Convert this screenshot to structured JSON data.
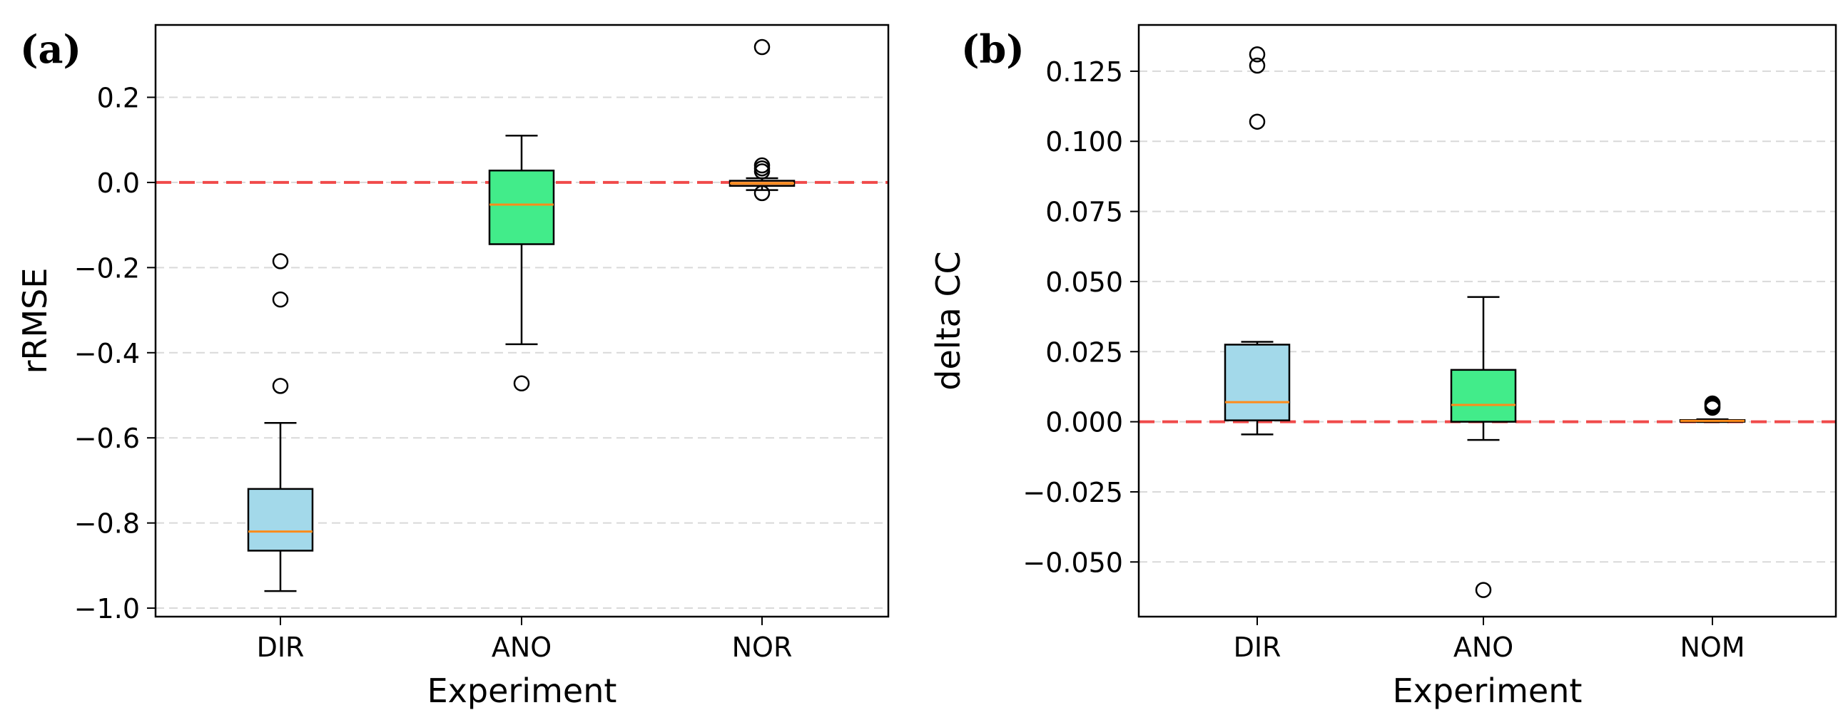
{
  "chart_data": [
    {
      "panel_label": "(a)",
      "type": "box",
      "xlabel": "Experiment",
      "ylabel": "rRMSE",
      "ylim": [
        -1.02,
        0.37
      ],
      "yticks": [
        0.2,
        0.0,
        -0.2,
        -0.4,
        -0.6,
        -0.8,
        -1.0
      ],
      "ytick_labels": [
        "0.2",
        "0.0",
        "−0.2",
        "−0.4",
        "−0.6",
        "−0.8",
        "−1.0"
      ],
      "grid": "horizontal-dashed",
      "reference_line": 0.0,
      "categories": [
        "DIR",
        "ANO",
        "NOR"
      ],
      "boxes": [
        {
          "label": "DIR",
          "color": "#a3d9ea",
          "q1": -0.865,
          "median": -0.82,
          "q3": -0.72,
          "whisker_low": -0.96,
          "whisker_high": -0.565,
          "outliers": [
            -0.185,
            -0.275,
            -0.478
          ]
        },
        {
          "label": "ANO",
          "color": "#42ec8a",
          "q1": -0.145,
          "median": -0.052,
          "q3": 0.028,
          "whisker_low": -0.38,
          "whisker_high": 0.11,
          "outliers": [
            -0.472
          ]
        },
        {
          "label": "NOR",
          "color": "#f4a06a",
          "q1": -0.008,
          "median": -0.002,
          "q3": 0.004,
          "whisker_low": -0.018,
          "whisker_high": 0.01,
          "outliers": [
            0.318,
            0.04,
            0.033,
            0.026,
            -0.025
          ]
        }
      ]
    },
    {
      "panel_label": "(b)",
      "type": "box",
      "xlabel": "Experiment",
      "ylabel": "delta CC",
      "ylim": [
        -0.0695,
        0.1415
      ],
      "yticks": [
        0.125,
        0.1,
        0.075,
        0.05,
        0.025,
        0.0,
        -0.025,
        -0.05
      ],
      "ytick_labels": [
        "0.125",
        "0.100",
        "0.075",
        "0.050",
        "0.025",
        "0.000",
        "−0.025",
        "−0.050"
      ],
      "grid": "horizontal-dashed",
      "reference_line": 0.0,
      "categories": [
        "DIR",
        "ANO",
        "NOM"
      ],
      "boxes": [
        {
          "label": "DIR",
          "color": "#a3d9ea",
          "q1": 0.0005,
          "median": 0.007,
          "q3": 0.0275,
          "whisker_low": -0.0045,
          "whisker_high": 0.0285,
          "outliers": [
            0.131,
            0.127,
            0.107
          ]
        },
        {
          "label": "ANO",
          "color": "#42ec8a",
          "q1": 0.0,
          "median": 0.006,
          "q3": 0.0185,
          "whisker_low": -0.0065,
          "whisker_high": 0.0445,
          "outliers": [
            -0.06
          ]
        },
        {
          "label": "NOM",
          "color": "#f4a06a",
          "q1": 0.0,
          "median": 0.0003,
          "q3": 0.0006,
          "whisker_low": -0.0001,
          "whisker_high": 0.0009,
          "outliers": [
            0.0065,
            0.006,
            0.0055,
            0.005
          ]
        }
      ]
    }
  ],
  "style": {
    "median_color": "#ff8c1a",
    "reference_line_color": "#f04a4a",
    "grid_color": "#d9d9d9"
  }
}
